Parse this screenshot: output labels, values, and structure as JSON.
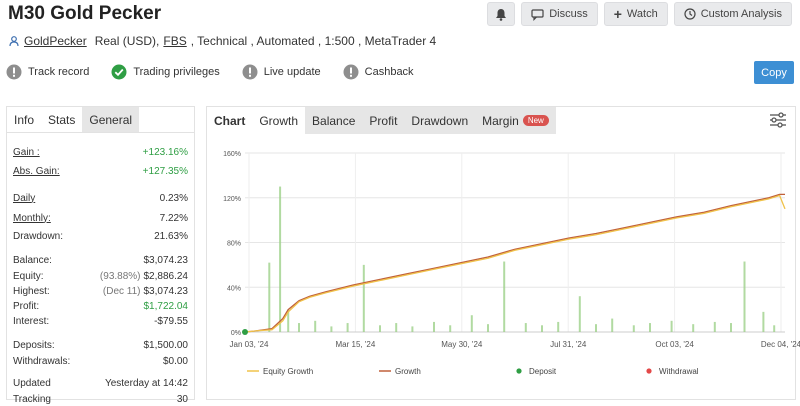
{
  "title": "M30 Gold Pecker",
  "actions": {
    "discuss": "Discuss",
    "watch": "Watch",
    "custom_analysis": "Custom Analysis"
  },
  "subline": {
    "author": "GoldPecker",
    "account": "Real (USD),",
    "broker": "FBS",
    "rest": ", Technical , Automated , 1:500 , MetaTrader 4"
  },
  "badges": {
    "track_record": "Track record",
    "trading_privileges": "Trading privileges",
    "live_update": "Live update",
    "cashback": "Cashback"
  },
  "copy_label": "Copy",
  "left_tabs": [
    "Info",
    "Stats",
    "General"
  ],
  "stats": {
    "gain_label": "Gain :",
    "gain": "+123.16%",
    "abs_gain_label": "Abs. Gain:",
    "abs_gain": "+127.35%",
    "daily_label": "Daily",
    "daily": "0.23%",
    "monthly_label": "Monthly:",
    "monthly": "7.22%",
    "drawdown_label": "Drawdown:",
    "drawdown": "21.63%",
    "balance_label": "Balance:",
    "balance": "$3,074.23",
    "equity_label": "Equity:",
    "equity_pct": "(93.88%)",
    "equity": "$2,886.24",
    "highest_label": "Highest:",
    "highest_date": "(Dec 11)",
    "highest": "$3,074.23",
    "profit_label": "Profit:",
    "profit": "$1,722.04",
    "interest_label": "Interest:",
    "interest": "-$79.55",
    "deposits_label": "Deposits:",
    "deposits": "$1,500.00",
    "withdrawals_label": "Withdrawals:",
    "withdrawals": "$0.00",
    "updated_label": "Updated",
    "updated": "Yesterday at 14:42",
    "tracking_label": "Tracking",
    "tracking": "30"
  },
  "chart_tabs": {
    "chart": "Chart",
    "growth": "Growth",
    "balance": "Balance",
    "profit": "Profit",
    "drawdown": "Drawdown",
    "margin": "Margin",
    "new": "New"
  },
  "colors": {
    "equity_growth": "#f0c24a",
    "growth": "#c0603a",
    "bars": "#9ed18a",
    "deposit": "#2f9e44",
    "withdrawal": "#e34848",
    "accent": "#3d8fd4"
  },
  "chart_data": {
    "type": "line",
    "x_tick_labels": [
      "Jan 03, '24",
      "Mar 15, '24",
      "May 30, '24",
      "Jul 31, '24",
      "Oct 03, '24",
      "Dec 04, '24"
    ],
    "y_tick_labels": [
      "0%",
      "40%",
      "80%",
      "120%",
      "160%"
    ],
    "ylim": [
      0,
      160
    ],
    "legend": [
      "Equity Growth",
      "Growth",
      "Deposit",
      "Withdrawal"
    ],
    "legend_position": "bottom",
    "series": [
      {
        "name": "Growth",
        "x": [
          0,
          0.02,
          0.05,
          0.07,
          0.08,
          0.1,
          0.12,
          0.15,
          0.2,
          0.25,
          0.3,
          0.35,
          0.4,
          0.45,
          0.5,
          0.55,
          0.6,
          0.65,
          0.7,
          0.75,
          0.8,
          0.85,
          0.9,
          0.95,
          0.97,
          0.99,
          1.0
        ],
        "y": [
          0,
          1,
          3,
          12,
          20,
          28,
          32,
          36,
          42,
          47,
          52,
          57,
          62,
          67,
          74,
          79,
          84,
          88,
          93,
          98,
          103,
          107,
          113,
          118,
          120,
          123,
          123
        ]
      },
      {
        "name": "Equity Growth",
        "x": [
          0,
          0.02,
          0.05,
          0.07,
          0.08,
          0.1,
          0.12,
          0.15,
          0.2,
          0.25,
          0.3,
          0.35,
          0.4,
          0.45,
          0.5,
          0.55,
          0.6,
          0.65,
          0.7,
          0.75,
          0.8,
          0.85,
          0.9,
          0.95,
          0.97,
          0.99,
          1.0
        ],
        "y": [
          0,
          1,
          2,
          10,
          18,
          27,
          31,
          35,
          41,
          46,
          51,
          56,
          61,
          66,
          73,
          78,
          83,
          87,
          92,
          97,
          102,
          106,
          112,
          117,
          119,
          122,
          110
        ]
      }
    ],
    "deposit_points": [
      {
        "x": 0,
        "y": 0
      }
    ],
    "volume_bars": [
      {
        "x": 0.045,
        "y": 62
      },
      {
        "x": 0.065,
        "y": 130
      },
      {
        "x": 0.08,
        "y": 20
      },
      {
        "x": 0.1,
        "y": 8
      },
      {
        "x": 0.13,
        "y": 10
      },
      {
        "x": 0.16,
        "y": 5
      },
      {
        "x": 0.19,
        "y": 8
      },
      {
        "x": 0.22,
        "y": 60
      },
      {
        "x": 0.25,
        "y": 6
      },
      {
        "x": 0.28,
        "y": 8
      },
      {
        "x": 0.31,
        "y": 5
      },
      {
        "x": 0.35,
        "y": 9
      },
      {
        "x": 0.38,
        "y": 6
      },
      {
        "x": 0.42,
        "y": 15
      },
      {
        "x": 0.45,
        "y": 7
      },
      {
        "x": 0.48,
        "y": 63
      },
      {
        "x": 0.52,
        "y": 8
      },
      {
        "x": 0.55,
        "y": 6
      },
      {
        "x": 0.58,
        "y": 9
      },
      {
        "x": 0.62,
        "y": 32
      },
      {
        "x": 0.65,
        "y": 7
      },
      {
        "x": 0.68,
        "y": 12
      },
      {
        "x": 0.72,
        "y": 6
      },
      {
        "x": 0.75,
        "y": 8
      },
      {
        "x": 0.79,
        "y": 10
      },
      {
        "x": 0.83,
        "y": 7
      },
      {
        "x": 0.87,
        "y": 9
      },
      {
        "x": 0.9,
        "y": 8
      },
      {
        "x": 0.925,
        "y": 63
      },
      {
        "x": 0.96,
        "y": 18
      },
      {
        "x": 0.98,
        "y": 6
      }
    ]
  }
}
